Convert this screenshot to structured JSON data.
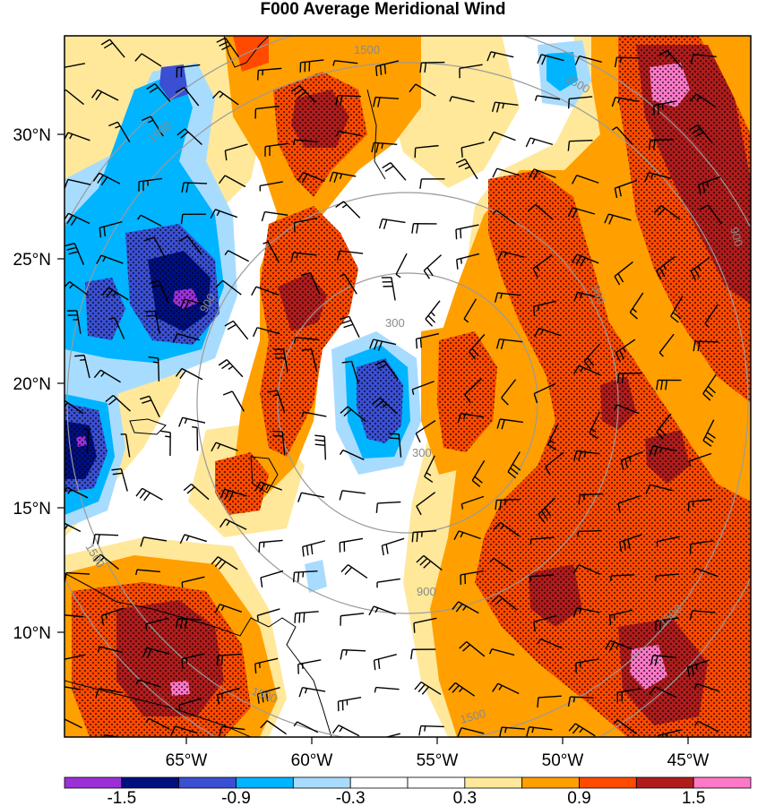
{
  "title": "F000 Average Meridional Wind",
  "axes": {
    "lat_ticks": [
      "30°N",
      "25°N",
      "20°N",
      "15°N",
      "10°N"
    ],
    "lon_ticks": [
      "65°W",
      "60°W",
      "55°W",
      "50°W",
      "45°W"
    ]
  },
  "rings": [
    {
      "label": "300"
    },
    {
      "label": "900"
    },
    {
      "label": "1500"
    }
  ],
  "colorbar": {
    "colors": [
      "#9b30d8",
      "#000f80",
      "#3a4fd2",
      "#00b4ff",
      "#a8dcff",
      "#ffffff",
      "#ffffff",
      "#ffe89a",
      "#ffa000",
      "#ff4a00",
      "#b01c1c",
      "#ff78c8"
    ],
    "labels": [
      "-1.5",
      "-0.9",
      "-0.3",
      "0.3",
      "0.9",
      "1.5"
    ]
  },
  "palette": {
    "neg_strong": "#000f80",
    "neg_mid": "#3a4fd2",
    "neg_light": "#00b4ff",
    "neg_faint": "#a8dcff",
    "pos_faint": "#ffe89a",
    "pos_light": "#ffa000",
    "pos_mid": "#ff4a00",
    "pos_strong": "#b01c1c",
    "pos_extreme": "#ff78c8",
    "purple": "#9b30d8"
  }
}
